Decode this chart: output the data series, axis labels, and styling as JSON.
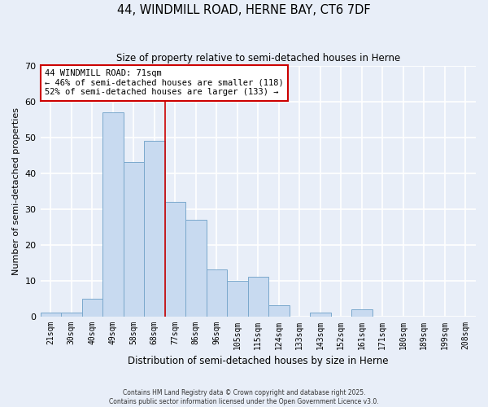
{
  "title": "44, WINDMILL ROAD, HERNE BAY, CT6 7DF",
  "subtitle": "Size of property relative to semi-detached houses in Herne",
  "bar_labels": [
    "21sqm",
    "30sqm",
    "40sqm",
    "49sqm",
    "58sqm",
    "68sqm",
    "77sqm",
    "86sqm",
    "96sqm",
    "105sqm",
    "115sqm",
    "124sqm",
    "133sqm",
    "143sqm",
    "152sqm",
    "161sqm",
    "171sqm",
    "180sqm",
    "189sqm",
    "199sqm",
    "208sqm"
  ],
  "bar_values": [
    1,
    1,
    5,
    57,
    43,
    49,
    32,
    27,
    13,
    10,
    11,
    3,
    0,
    1,
    0,
    2,
    0,
    0,
    0,
    0,
    0
  ],
  "bar_color": "#c8daf0",
  "bar_edge_color": "#7aa8cc",
  "background_color": "#e8eef8",
  "grid_color": "#ffffff",
  "ylabel": "Number of semi-detached properties",
  "xlabel": "Distribution of semi-detached houses by size in Herne",
  "ylim": [
    0,
    70
  ],
  "yticks": [
    0,
    10,
    20,
    30,
    40,
    50,
    60,
    70
  ],
  "annotation_title": "44 WINDMILL ROAD: 71sqm",
  "annotation_line1": "← 46% of semi-detached houses are smaller (118)",
  "annotation_line2": "52% of semi-detached houses are larger (133) →",
  "redline_x": 5.5,
  "footer_line1": "Contains HM Land Registry data © Crown copyright and database right 2025.",
  "footer_line2": "Contains public sector information licensed under the Open Government Licence v3.0."
}
